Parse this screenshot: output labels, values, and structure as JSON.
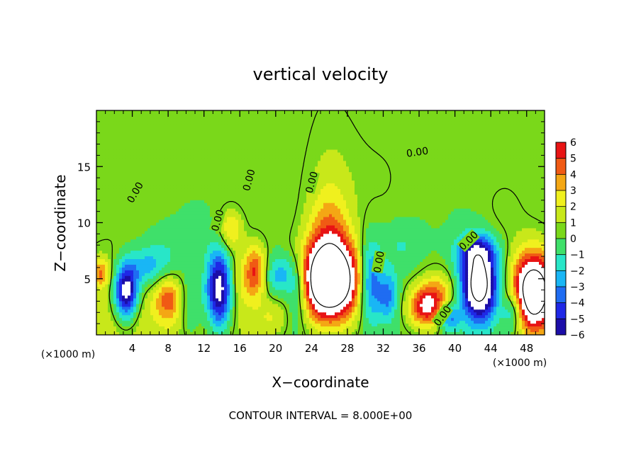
{
  "chart_data": {
    "type": "heatmap",
    "title": "vertical velocity",
    "xlabel": "X−coordinate",
    "ylabel": "Z−coordinate",
    "x_unit_left": "(×1000 m)",
    "x_unit_right": "(×1000 m)",
    "footer": "CONTOUR INTERVAL = 8.000E+00",
    "xlim": [
      0,
      50
    ],
    "ylim": [
      0,
      20
    ],
    "x_ticks": [
      4,
      8,
      12,
      16,
      20,
      24,
      28,
      32,
      36,
      40,
      44,
      48
    ],
    "y_ticks": [
      5,
      10,
      15
    ],
    "colorbar": {
      "ticks": [
        6,
        5,
        4,
        3,
        2,
        1,
        0,
        -1,
        -2,
        -3,
        -4,
        -5,
        -6
      ],
      "tick_labels": [
        "6",
        "5",
        "4",
        "3",
        "2",
        "1",
        "0",
        "−1",
        "−2",
        "−3",
        "−4",
        "−5",
        "−6"
      ],
      "range": [
        -6,
        6
      ]
    },
    "contour_labels": [
      {
        "text": "0.00",
        "x": 4.3,
        "z": 12.7,
        "angle": -60
      },
      {
        "text": "0.00",
        "x": 13.5,
        "z": 10.2,
        "angle": -75
      },
      {
        "text": "0.00",
        "x": 17.0,
        "z": 13.8,
        "angle": -75
      },
      {
        "text": "0.00",
        "x": 24.0,
        "z": 13.6,
        "angle": -75
      },
      {
        "text": "0.00",
        "x": 35.8,
        "z": 16.3,
        "angle": -8
      },
      {
        "text": "0.00",
        "x": 31.5,
        "z": 6.5,
        "angle": -80
      },
      {
        "text": "0.00",
        "x": 41.5,
        "z": 8.4,
        "angle": -45
      },
      {
        "text": "0.00",
        "x": 38.6,
        "z": 1.7,
        "angle": -55
      }
    ],
    "features": [
      {
        "x": 2.2,
        "z": 1.6,
        "sx": 3.3,
        "sz": 4.8,
        "v": 1.5
      },
      {
        "x": 9.0,
        "z": 1.2,
        "sx": 3.2,
        "sz": 3.0,
        "v": 1.2
      },
      {
        "x": 15.5,
        "z": 1.5,
        "sx": 2.5,
        "sz": 4.0,
        "v": 1.0
      },
      {
        "x": 26.0,
        "z": 14.0,
        "sx": 2.5,
        "sz": 7.0,
        "v": 0.8
      },
      {
        "x": 32.0,
        "z": 14.0,
        "sx": 3.0,
        "sz": 4.0,
        "v": 0.5
      },
      {
        "x": 3.3,
        "z": 3.8,
        "sx": 0.9,
        "sz": 1.7,
        "v": -8
      },
      {
        "x": 5.2,
        "z": 6.0,
        "sx": 1.4,
        "sz": 1.3,
        "v": -2.5
      },
      {
        "x": 7.5,
        "z": 6.5,
        "sx": 1.5,
        "sz": 1.6,
        "v": -1.6
      },
      {
        "x": 8.0,
        "z": 3.3,
        "sx": 1.1,
        "sz": 1.4,
        "v": 3.8
      },
      {
        "x": 10.5,
        "z": 2.5,
        "sx": 0.9,
        "sz": 2.0,
        "v": -2.2
      },
      {
        "x": 13.7,
        "z": 4.0,
        "sx": 1.0,
        "sz": 2.4,
        "v": -8
      },
      {
        "x": 15.0,
        "z": 9.4,
        "sx": 0.9,
        "sz": 1.3,
        "v": 3.0
      },
      {
        "x": 17.8,
        "z": 5.8,
        "sx": 0.8,
        "sz": 1.6,
        "v": 4.0
      },
      {
        "x": 16.5,
        "z": 4.8,
        "sx": 1.5,
        "sz": 2.0,
        "v": 1.6
      },
      {
        "x": 20.5,
        "z": 5.3,
        "sx": 1.3,
        "sz": 1.3,
        "v": -3.2
      },
      {
        "x": 19.5,
        "z": 1.5,
        "sx": 1.2,
        "sz": 1.2,
        "v": 1.6
      },
      {
        "x": 26.0,
        "z": 4.8,
        "sx": 2.4,
        "sz": 2.4,
        "v": 12
      },
      {
        "x": 26.0,
        "z": 9.0,
        "sx": 1.6,
        "sz": 3.2,
        "v": 3.0
      },
      {
        "x": 22.5,
        "z": 4.0,
        "sx": 0.9,
        "sz": 2.2,
        "v": -3.5
      },
      {
        "x": 30.5,
        "z": 4.8,
        "sx": 0.9,
        "sz": 2.5,
        "v": -5.0
      },
      {
        "x": 32.5,
        "z": 3.5,
        "sx": 0.8,
        "sz": 1.6,
        "v": -3.5
      },
      {
        "x": 36.5,
        "z": 2.5,
        "sx": 1.3,
        "sz": 1.3,
        "v": 5.0
      },
      {
        "x": 38.2,
        "z": 3.3,
        "sx": 1.4,
        "sz": 1.6,
        "v": 3.5
      },
      {
        "x": 39.3,
        "z": 1.6,
        "sx": 0.8,
        "sz": 0.9,
        "v": -4.5
      },
      {
        "x": 42.7,
        "z": 4.5,
        "sx": 1.4,
        "sz": 2.3,
        "v": -10
      },
      {
        "x": 42.3,
        "z": 7.5,
        "sx": 1.6,
        "sz": 1.0,
        "v": -3.2
      },
      {
        "x": 48.8,
        "z": 3.8,
        "sx": 1.7,
        "sz": 2.5,
        "v": 11
      },
      {
        "x": 46.5,
        "z": 2.0,
        "sx": 0.8,
        "sz": 1.3,
        "v": -3.5
      },
      {
        "x": 45.5,
        "z": 11.0,
        "sx": 2.0,
        "sz": 2.5,
        "v": 0.7
      },
      {
        "x": 0.5,
        "z": 5.5,
        "sx": 0.6,
        "sz": 0.9,
        "v": 3.5
      },
      {
        "x": 11.0,
        "z": 8.5,
        "sx": 1.0,
        "sz": 1.2,
        "v": -0.8
      },
      {
        "x": 34.0,
        "z": 8.0,
        "sx": 1.5,
        "sz": 1.5,
        "v": -1.2
      }
    ]
  }
}
